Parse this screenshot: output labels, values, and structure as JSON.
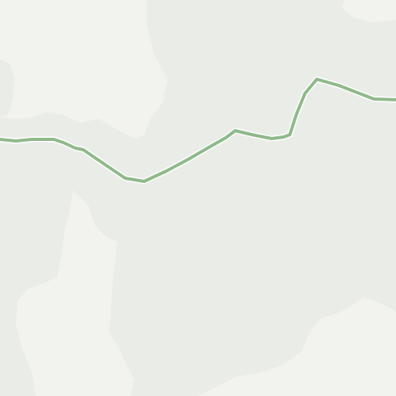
{
  "map": {
    "colors": {
      "terrain_base": "#eaece8",
      "terrain_light": "#f2f3ef",
      "route": "#8fb98a",
      "route_casing": "#ffffff"
    },
    "features": [
      {
        "name": "terrain-base",
        "kind": "land-cover"
      },
      {
        "name": "light-terrain-areas",
        "kind": "land-cover"
      },
      {
        "name": "trail-route",
        "kind": "path"
      }
    ]
  }
}
